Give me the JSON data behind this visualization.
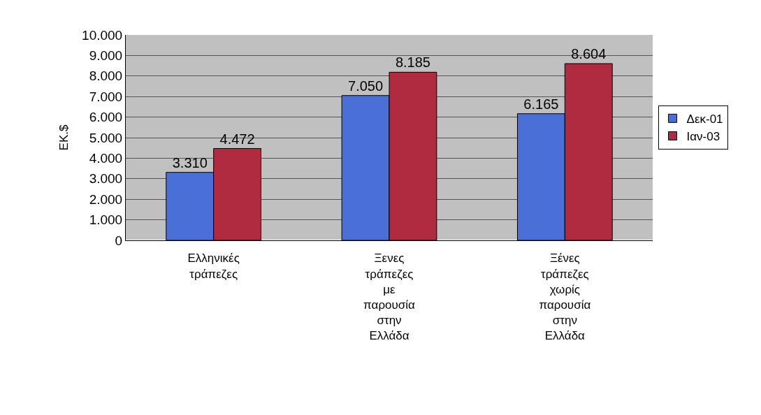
{
  "chart_data": {
    "type": "bar",
    "ylabel": "ΕΚ.$",
    "categories": [
      "Ελληνικές\nτράπεζες",
      "Ξενες\nτράπεζες\nμε\nπαρουσία\nστην\nΕλλάδα",
      "Ξένες\nτράπεζες\nχωρίς\nπαρουσία\nστην\nΕλλάδα"
    ],
    "series": [
      {
        "name": "Δεκ-01",
        "color": "#4a6fd6",
        "values": [
          3310,
          7050,
          6165
        ],
        "value_labels": [
          "3.310",
          "7.050",
          "6.165"
        ]
      },
      {
        "name": "Ιαν-03",
        "color": "#b02a40",
        "values": [
          4472,
          8185,
          8604
        ],
        "value_labels": [
          "4.472",
          "8.185",
          "8.604"
        ]
      }
    ],
    "ylim": [
      0,
      10000
    ],
    "yticks": [
      {
        "value": 0,
        "label": "0"
      },
      {
        "value": 1000,
        "label": "1.000"
      },
      {
        "value": 2000,
        "label": "2.000"
      },
      {
        "value": 3000,
        "label": "3.000"
      },
      {
        "value": 4000,
        "label": "4.000"
      },
      {
        "value": 5000,
        "label": "5.000"
      },
      {
        "value": 6000,
        "label": "6.000"
      },
      {
        "value": 7000,
        "label": "7.000"
      },
      {
        "value": 8000,
        "label": "8.000"
      },
      {
        "value": 9000,
        "label": "9.000"
      },
      {
        "value": 10000,
        "label": "10.000"
      }
    ],
    "grid": "y",
    "legend": "right"
  }
}
